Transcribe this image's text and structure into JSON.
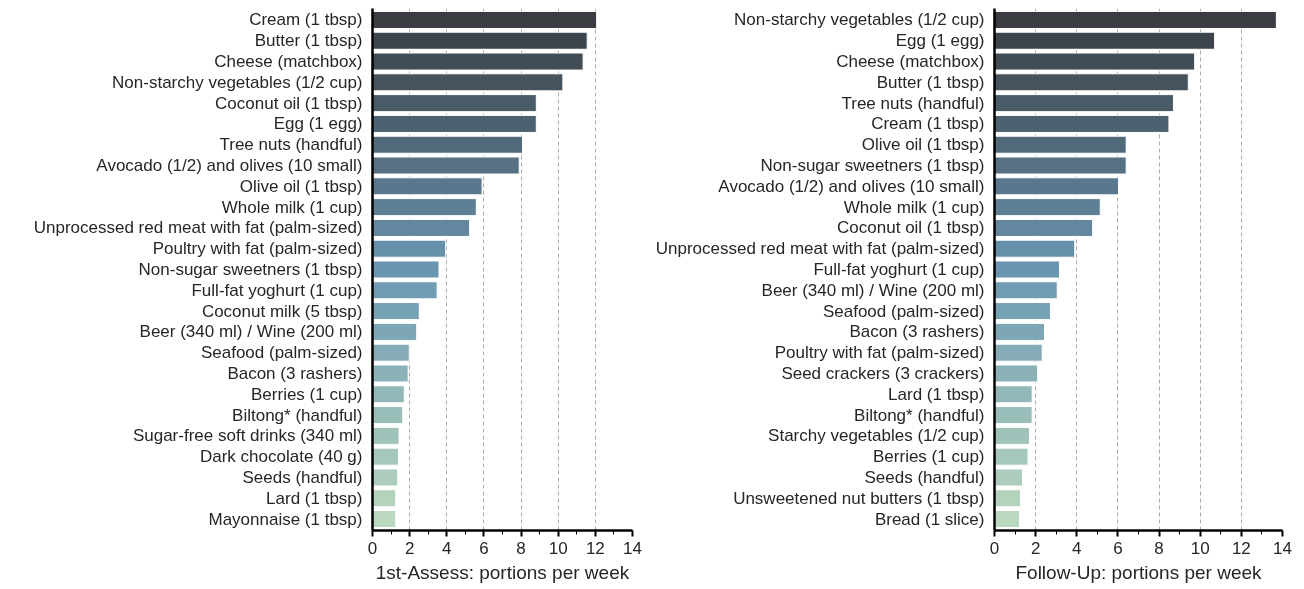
{
  "chart_data": [
    {
      "type": "bar",
      "orientation": "horizontal",
      "xlabel": "1st-Assess: portions per week",
      "categories": [
        "Cream (1 tbsp)",
        "Butter (1 tbsp)",
        "Cheese (matchbox)",
        "Non-starchy vegetables (1/2 cup)",
        "Coconut oil (1 tbsp)",
        "Egg (1 egg)",
        "Tree nuts (handful)",
        "Avocado (1/2) and olives (10 small)",
        "Olive oil (1 tbsp)",
        "Whole milk (1 cup)",
        "Unprocessed red meat with fat (palm-sized)",
        "Poultry with fat (palm-sized)",
        "Non-sugar sweetners (1 tbsp)",
        "Full-fat yoghurt (1 cup)",
        "Coconut milk (5 tbsp)",
        "Beer (340 ml) / Wine (200 ml)",
        "Seafood (palm-sized)",
        "Bacon (3 rashers)",
        "Berries (1 cup)",
        "Biltong* (handful)",
        "Sugar-free soft drinks (340 ml)",
        "Dark chocolate (40 g)",
        "Seeds (handful)",
        "Lard (1 tbsp)",
        "Mayonnaise (1 tbsp)"
      ],
      "values": [
        12.07,
        11.56,
        11.34,
        10.25,
        8.82,
        8.82,
        8.08,
        7.9,
        5.9,
        5.59,
        5.23,
        3.94,
        3.58,
        3.48,
        2.52,
        2.38,
        1.98,
        1.92,
        1.71,
        1.63,
        1.43,
        1.4,
        1.36,
        1.25,
        1.25
      ],
      "colors": [
        "#393d42",
        "#3d444b",
        "#414c55",
        "#45535e",
        "#495b67",
        "#4d6271",
        "#516a7a",
        "#567183",
        "#5a788d",
        "#5e8096",
        "#62879f",
        "#668fa9",
        "#6a96b2",
        "#719cb3",
        "#77a1b4",
        "#7ea7b5",
        "#85acb6",
        "#8bb2b7",
        "#92b7b8",
        "#99bdb9",
        "#9fc2ba",
        "#a6c8bb",
        "#adcdbc",
        "#b3d3bd",
        "#bad8be"
      ],
      "xlim": [
        0,
        14
      ],
      "xticks": [
        0,
        {
          "value": 1,
          "label": null
        },
        2,
        {
          "value": 3,
          "label": null
        },
        4,
        {
          "value": 5,
          "label": null
        },
        6,
        {
          "value": 7,
          "label": null
        },
        8,
        {
          "value": 9,
          "label": null
        },
        10,
        {
          "value": 11,
          "label": null
        },
        12,
        {
          "value": 13,
          "label": null
        },
        14
      ],
      "grid": "x"
    },
    {
      "type": "bar",
      "orientation": "horizontal",
      "xlabel": "Follow-Up: portions per week",
      "categories": [
        "Non-starchy vegetables (1/2 cup)",
        "Egg (1 egg)",
        "Cheese (matchbox)",
        "Butter (1 tbsp)",
        "Tree nuts (handful)",
        "Cream (1 tbsp)",
        "Olive oil (1 tbsp)",
        "Non-sugar sweetners (1 tbsp)",
        "Avocado (1/2) and olives (10 small)",
        "Whole milk (1 cup)",
        "Coconut oil (1 tbsp)",
        "Unprocessed red meat with fat (palm-sized)",
        "Full-fat yoghurt (1 cup)",
        "Beer (340 ml) / Wine (200 ml)",
        "Seafood (palm-sized)",
        "Bacon (3 rashers)",
        "Poultry with fat (palm-sized)",
        "Seed crackers (3 crackers)",
        "Lard (1 tbsp)",
        "Biltong* (handful)",
        "Starchy vegetables (1/2 cup)",
        "Berries (1 cup)",
        "Seeds (handful)",
        "Unsweetened nut butters (1 tbsp)",
        "Bread (1 slice)"
      ],
      "values": [
        13.7,
        10.7,
        9.73,
        9.42,
        8.7,
        8.48,
        6.4,
        6.4,
        6.03,
        5.14,
        4.77,
        3.9,
        3.16,
        3.05,
        2.72,
        2.43,
        2.32,
        2.1,
        1.83,
        1.83,
        1.7,
        1.63,
        1.36,
        1.27,
        1.22
      ],
      "colors": [
        "#393d42",
        "#3d444b",
        "#414c55",
        "#45535e",
        "#495b67",
        "#4d6271",
        "#516a7a",
        "#567183",
        "#5a788d",
        "#5e8096",
        "#62879f",
        "#668fa9",
        "#6a96b2",
        "#719cb3",
        "#77a1b4",
        "#7ea7b5",
        "#85acb6",
        "#8bb2b7",
        "#92b7b8",
        "#99bdb9",
        "#9fc2ba",
        "#a6c8bb",
        "#adcdbc",
        "#b3d3bd",
        "#bad8be"
      ],
      "xlim": [
        0,
        14
      ],
      "xticks": [
        0,
        {
          "value": 1,
          "label": null
        },
        2,
        {
          "value": 3,
          "label": null
        },
        4,
        {
          "value": 5,
          "label": null
        },
        6,
        {
          "value": 7,
          "label": null
        },
        8,
        {
          "value": 9,
          "label": null
        },
        10,
        {
          "value": 11,
          "label": null
        },
        12,
        {
          "value": 13,
          "label": null
        },
        14
      ],
      "grid": "x"
    }
  ]
}
